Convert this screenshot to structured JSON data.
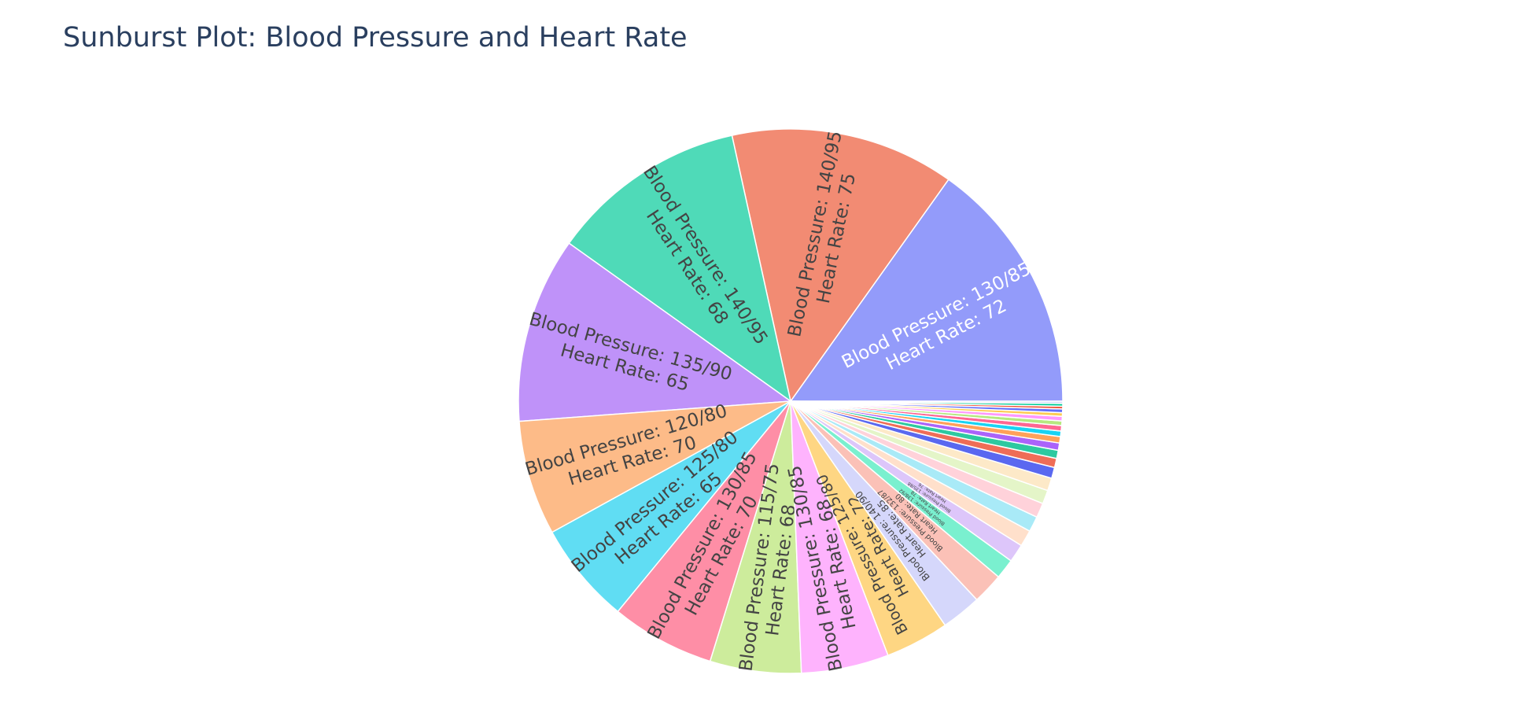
{
  "chart_data": {
    "type": "sunburst",
    "title": "Sunburst Plot: Blood Pressure and Heart Rate",
    "slices": [
      {
        "label": "Blood Pressure: 130/85",
        "heart_rate_label": "Heart Rate: 72",
        "value": 14.0,
        "color": "#939bfa",
        "text_color": "#ffffff"
      },
      {
        "label": "Blood Pressure: 140/95",
        "heart_rate_label": "Heart Rate: 75",
        "value": 12.3,
        "color": "#f28b73",
        "text_color": "#444444"
      },
      {
        "label": "Blood Pressure: 140/95",
        "heart_rate_label": "Heart Rate: 68",
        "value": 10.8,
        "color": "#4fdab8",
        "text_color": "#444444"
      },
      {
        "label": "Blood Pressure: 135/90",
        "heart_rate_label": "Heart Rate: 65",
        "value": 10.2,
        "color": "#bf92f9",
        "text_color": "#444444"
      },
      {
        "label": "Blood Pressure: 120/80",
        "heart_rate_label": "Heart Rate: 70",
        "value": 6.3,
        "color": "#fdbb88",
        "text_color": "#444444"
      },
      {
        "label": "Blood Pressure: 125/80",
        "heart_rate_label": "Heart Rate: 65",
        "value": 5.6,
        "color": "#60ddf3",
        "text_color": "#444444"
      },
      {
        "label": "Blood Pressure: 130/85",
        "heart_rate_label": "Heart Rate: 70",
        "value": 5.7,
        "color": "#fe8ea6",
        "text_color": "#444444"
      },
      {
        "label": "Blood Pressure: 115/75",
        "heart_rate_label": "Heart Rate: 68",
        "value": 5.0,
        "color": "#cdec9c",
        "text_color": "#444444"
      },
      {
        "label": "Blood Pressure: 130/85",
        "heart_rate_label": "Heart Rate: 68",
        "value": 4.8,
        "color": "#feb3fd",
        "text_color": "#444444"
      },
      {
        "label": "Blood Pressure: 125/80",
        "heart_rate_label": "Heart Rate: 72",
        "value": 3.5,
        "color": "#fed683",
        "text_color": "#444444"
      },
      {
        "label": "Blood Pressure: 140/90",
        "heart_rate_label": "Heart Rate: 85",
        "value": 2.2,
        "color": "#d5d7fb",
        "text_color": "#444444"
      },
      {
        "label": "Blood Pressure: 132/87",
        "heart_rate_label": "Heart Rate: 80",
        "value": 1.7,
        "color": "#fbc1b7",
        "text_color": "#444444"
      },
      {
        "label": "Blood Pressure: 138/92",
        "heart_rate_label": "Heart Rate: 78",
        "value": 1.1,
        "color": "#7af0cf",
        "text_color": "#444444"
      },
      {
        "label": "Blood Pressure: 135/88",
        "heart_rate_label": "Heart Rate: 76",
        "value": 1.0,
        "color": "#ddc6fa",
        "text_color": "#444444"
      },
      {
        "label": "",
        "heart_rate_label": "",
        "value": 0.9,
        "color": "#ffe0cb",
        "text_color": "#444444"
      },
      {
        "label": "",
        "heart_rate_label": "",
        "value": 0.85,
        "color": "#a9eaf7",
        "text_color": "#444444"
      },
      {
        "label": "",
        "heart_rate_label": "",
        "value": 0.8,
        "color": "#ffd2da",
        "text_color": "#444444"
      },
      {
        "label": "",
        "heart_rate_label": "",
        "value": 0.75,
        "color": "#e4f5c8",
        "text_color": "#444444"
      },
      {
        "label": "",
        "heart_rate_label": "",
        "value": 0.7,
        "color": "#fde9c8",
        "text_color": "#444444"
      },
      {
        "label": "",
        "heart_rate_label": "",
        "value": 0.6,
        "color": "#5a68f0",
        "text_color": "#444444"
      },
      {
        "label": "",
        "heart_rate_label": "",
        "value": 0.5,
        "color": "#ef6d57",
        "text_color": "#444444"
      },
      {
        "label": "",
        "heart_rate_label": "",
        "value": 0.45,
        "color": "#2dc9a0",
        "text_color": "#444444"
      },
      {
        "label": "",
        "heart_rate_label": "",
        "value": 0.4,
        "color": "#ab63fa",
        "text_color": "#444444"
      },
      {
        "label": "",
        "heart_rate_label": "",
        "value": 0.35,
        "color": "#ffa15a",
        "text_color": "#444444"
      },
      {
        "label": "",
        "heart_rate_label": "",
        "value": 0.3,
        "color": "#19d3f3",
        "text_color": "#444444"
      },
      {
        "label": "",
        "heart_rate_label": "",
        "value": 0.3,
        "color": "#ff6692",
        "text_color": "#444444"
      },
      {
        "label": "",
        "heart_rate_label": "",
        "value": 0.25,
        "color": "#b6e880",
        "text_color": "#444444"
      },
      {
        "label": "",
        "heart_rate_label": "",
        "value": 0.25,
        "color": "#ff97ff",
        "text_color": "#444444"
      },
      {
        "label": "",
        "heart_rate_label": "",
        "value": 0.2,
        "color": "#fecb52",
        "text_color": "#444444"
      },
      {
        "label": "",
        "heart_rate_label": "",
        "value": 0.2,
        "color": "#636efa",
        "text_color": "#444444"
      },
      {
        "label": "",
        "heart_rate_label": "",
        "value": 0.15,
        "color": "#ef553b",
        "text_color": "#444444"
      },
      {
        "label": "",
        "heart_rate_label": "",
        "value": 0.15,
        "color": "#00cc96",
        "text_color": "#444444"
      },
      {
        "label": "",
        "heart_rate_label": "",
        "value": 0.12,
        "color": "#d5d7fb",
        "text_color": "#444444"
      }
    ]
  }
}
